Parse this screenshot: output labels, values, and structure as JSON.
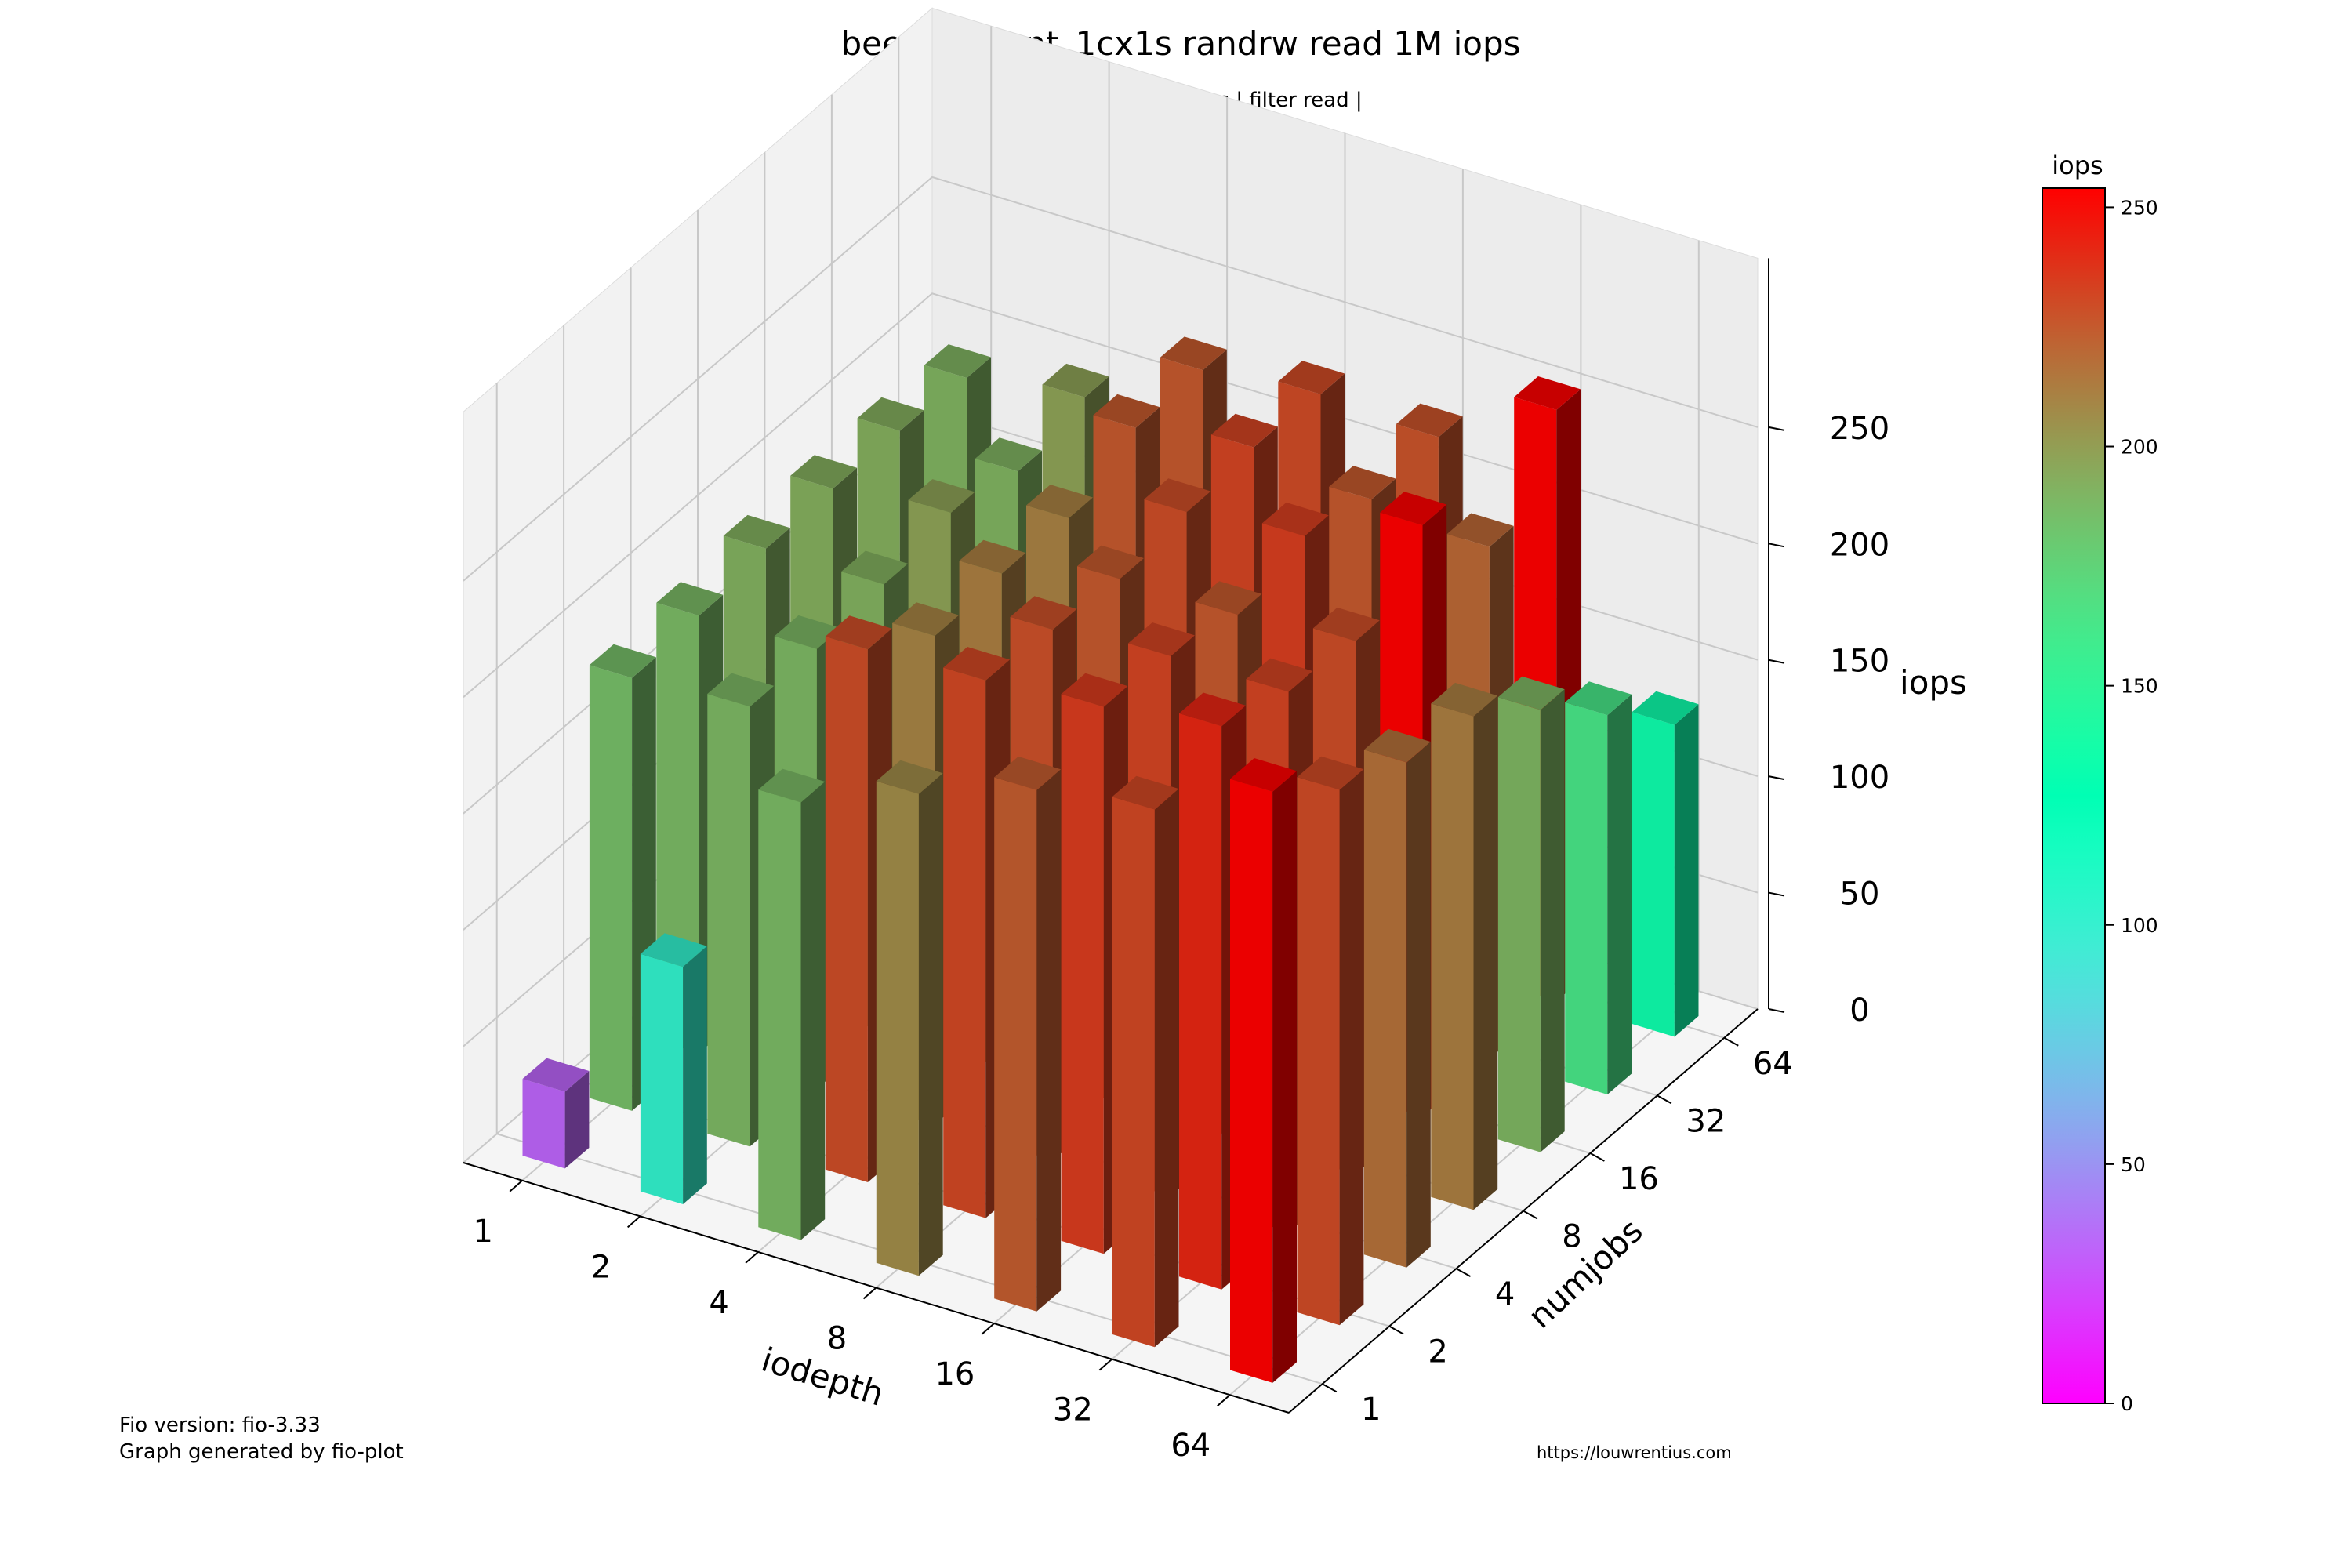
{
  "figure": {
    "title": "beegfs_client_1cx1s randrw read 1M iops",
    "subtitle": "| rw randrw | type iops | filter read |",
    "footer_left_line1": "Fio version: fio-3.33",
    "footer_left_line2": "Graph generated by fio-plot",
    "footer_right": "https://louwrentius.com"
  },
  "colorbar": {
    "label": "iops",
    "ticks": [
      0,
      50,
      100,
      150,
      200,
      250
    ],
    "range": [
      0,
      254
    ],
    "colormap": "rainbow"
  },
  "chart_data": {
    "type": "bar3d",
    "title": "beegfs_client_1cx1s randrw read 1M iops",
    "subtitle": "| rw randrw | type iops | filter read |",
    "xlabel": "iodepth",
    "ylabel": "numjobs",
    "zlabel": "iops",
    "x_categories": [
      "1",
      "2",
      "4",
      "8",
      "16",
      "32",
      "64"
    ],
    "y_categories": [
      "1",
      "2",
      "4",
      "8",
      "16",
      "32",
      "64"
    ],
    "zlim": [
      0,
      254
    ],
    "z_ticks": [
      0,
      50,
      100,
      150,
      200,
      250
    ],
    "grid": true,
    "colormap": "rainbow",
    "values": [
      [
        33,
        102,
        188,
        207,
        224,
        231,
        254
      ],
      [
        186,
        189,
        229,
        231,
        235,
        242,
        230
      ],
      [
        188,
        189,
        210,
        228,
        232,
        232,
        217
      ],
      [
        192,
        192,
        212,
        225,
        225,
        229,
        212
      ],
      [
        193,
        198,
        211,
        229,
        234,
        254,
        190
      ],
      [
        193,
        191,
        225,
        232,
        225,
        220,
        163
      ],
      [
        191,
        198,
        225,
        230,
        227,
        254,
        134
      ]
    ]
  }
}
